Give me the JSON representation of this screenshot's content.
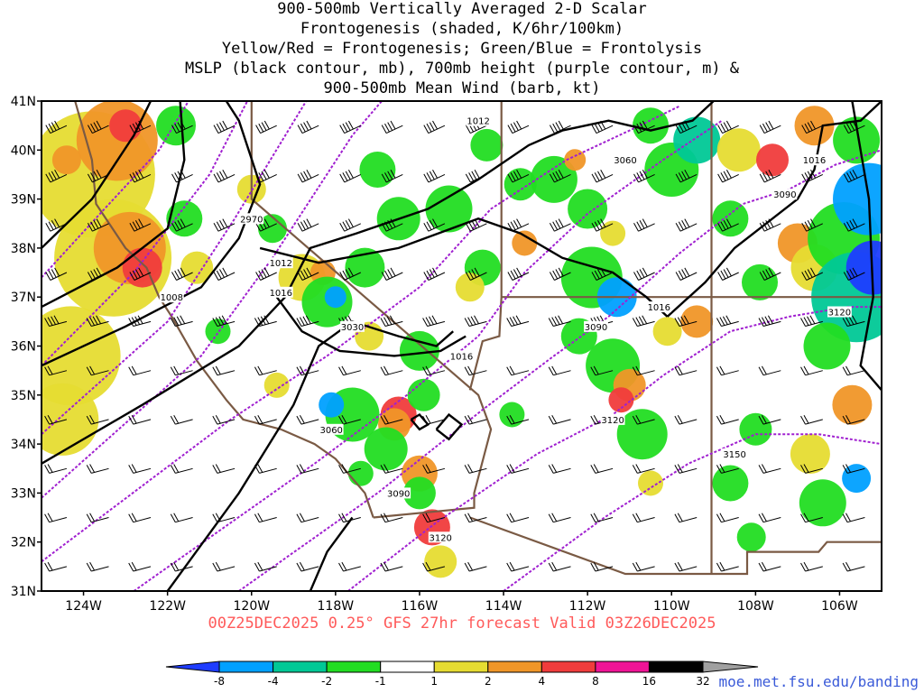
{
  "title": {
    "line1": "900-500mb Vertically Averaged 2-D Scalar",
    "line2": "Frontogenesis (shaded, K/6hr/100km)",
    "line3": "Yellow/Red = Frontogenesis;  Green/Blue = Frontolysis",
    "line4": "MSLP (black contour, mb), 700mb height (purple contour, m) &",
    "line5": "900-500mb Mean Wind (barb, kt)"
  },
  "axes": {
    "lat_labels": [
      "41N",
      "40N",
      "39N",
      "38N",
      "37N",
      "36N",
      "35N",
      "34N",
      "33N",
      "32N",
      "31N"
    ],
    "lon_labels": [
      "124W",
      "122W",
      "120W",
      "118W",
      "116W",
      "114W",
      "112W",
      "110W",
      "108W",
      "106W"
    ],
    "lat_range": [
      31,
      41
    ],
    "lon_range": [
      -125,
      -105
    ]
  },
  "mslp_labels": [
    {
      "text": "1012",
      "lon": -114.6,
      "lat": 40.6
    },
    {
      "text": "1016",
      "lon": -106.6,
      "lat": 39.8
    },
    {
      "text": "1012",
      "lon": -119.3,
      "lat": 37.7
    },
    {
      "text": "1016",
      "lon": -119.3,
      "lat": 37.1
    },
    {
      "text": "1008",
      "lon": -121.9,
      "lat": 37.0
    },
    {
      "text": "1016",
      "lon": -110.3,
      "lat": 36.8
    },
    {
      "text": "1016",
      "lon": -115.0,
      "lat": 35.8
    }
  ],
  "height_labels": [
    {
      "text": "3060",
      "lon": -111.1,
      "lat": 39.8
    },
    {
      "text": "3090",
      "lon": -107.3,
      "lat": 39.1
    },
    {
      "text": "2970",
      "lon": -120.0,
      "lat": 38.6
    },
    {
      "text": "3030",
      "lon": -117.6,
      "lat": 36.4
    },
    {
      "text": "3090",
      "lon": -111.8,
      "lat": 36.4
    },
    {
      "text": "3120",
      "lon": -106.0,
      "lat": 36.7
    },
    {
      "text": "3060",
      "lon": -118.1,
      "lat": 34.3
    },
    {
      "text": "3120",
      "lon": -111.4,
      "lat": 34.5
    },
    {
      "text": "3150",
      "lon": -108.5,
      "lat": 33.8
    },
    {
      "text": "3090",
      "lon": -116.5,
      "lat": 33.0
    },
    {
      "text": "3120",
      "lon": -115.5,
      "lat": 32.1
    }
  ],
  "colorbar": {
    "ticks": [
      "-8",
      "-4",
      "-2",
      "-1",
      "1",
      "2",
      "4",
      "8",
      "16",
      "32"
    ],
    "colors": [
      "#1e3cff",
      "#00a0ff",
      "#00c896",
      "#22dd22",
      "#ffffff",
      "#e6dc32",
      "#f09628",
      "#f03c3c",
      "#f01496",
      "#000000",
      "#a0a0a0"
    ]
  },
  "footer": {
    "valid": "00Z25DEC2025 0.25° GFS 27hr forecast Valid 03Z26DEC2025",
    "credit": "moe.met.fsu.edu/banding"
  }
}
